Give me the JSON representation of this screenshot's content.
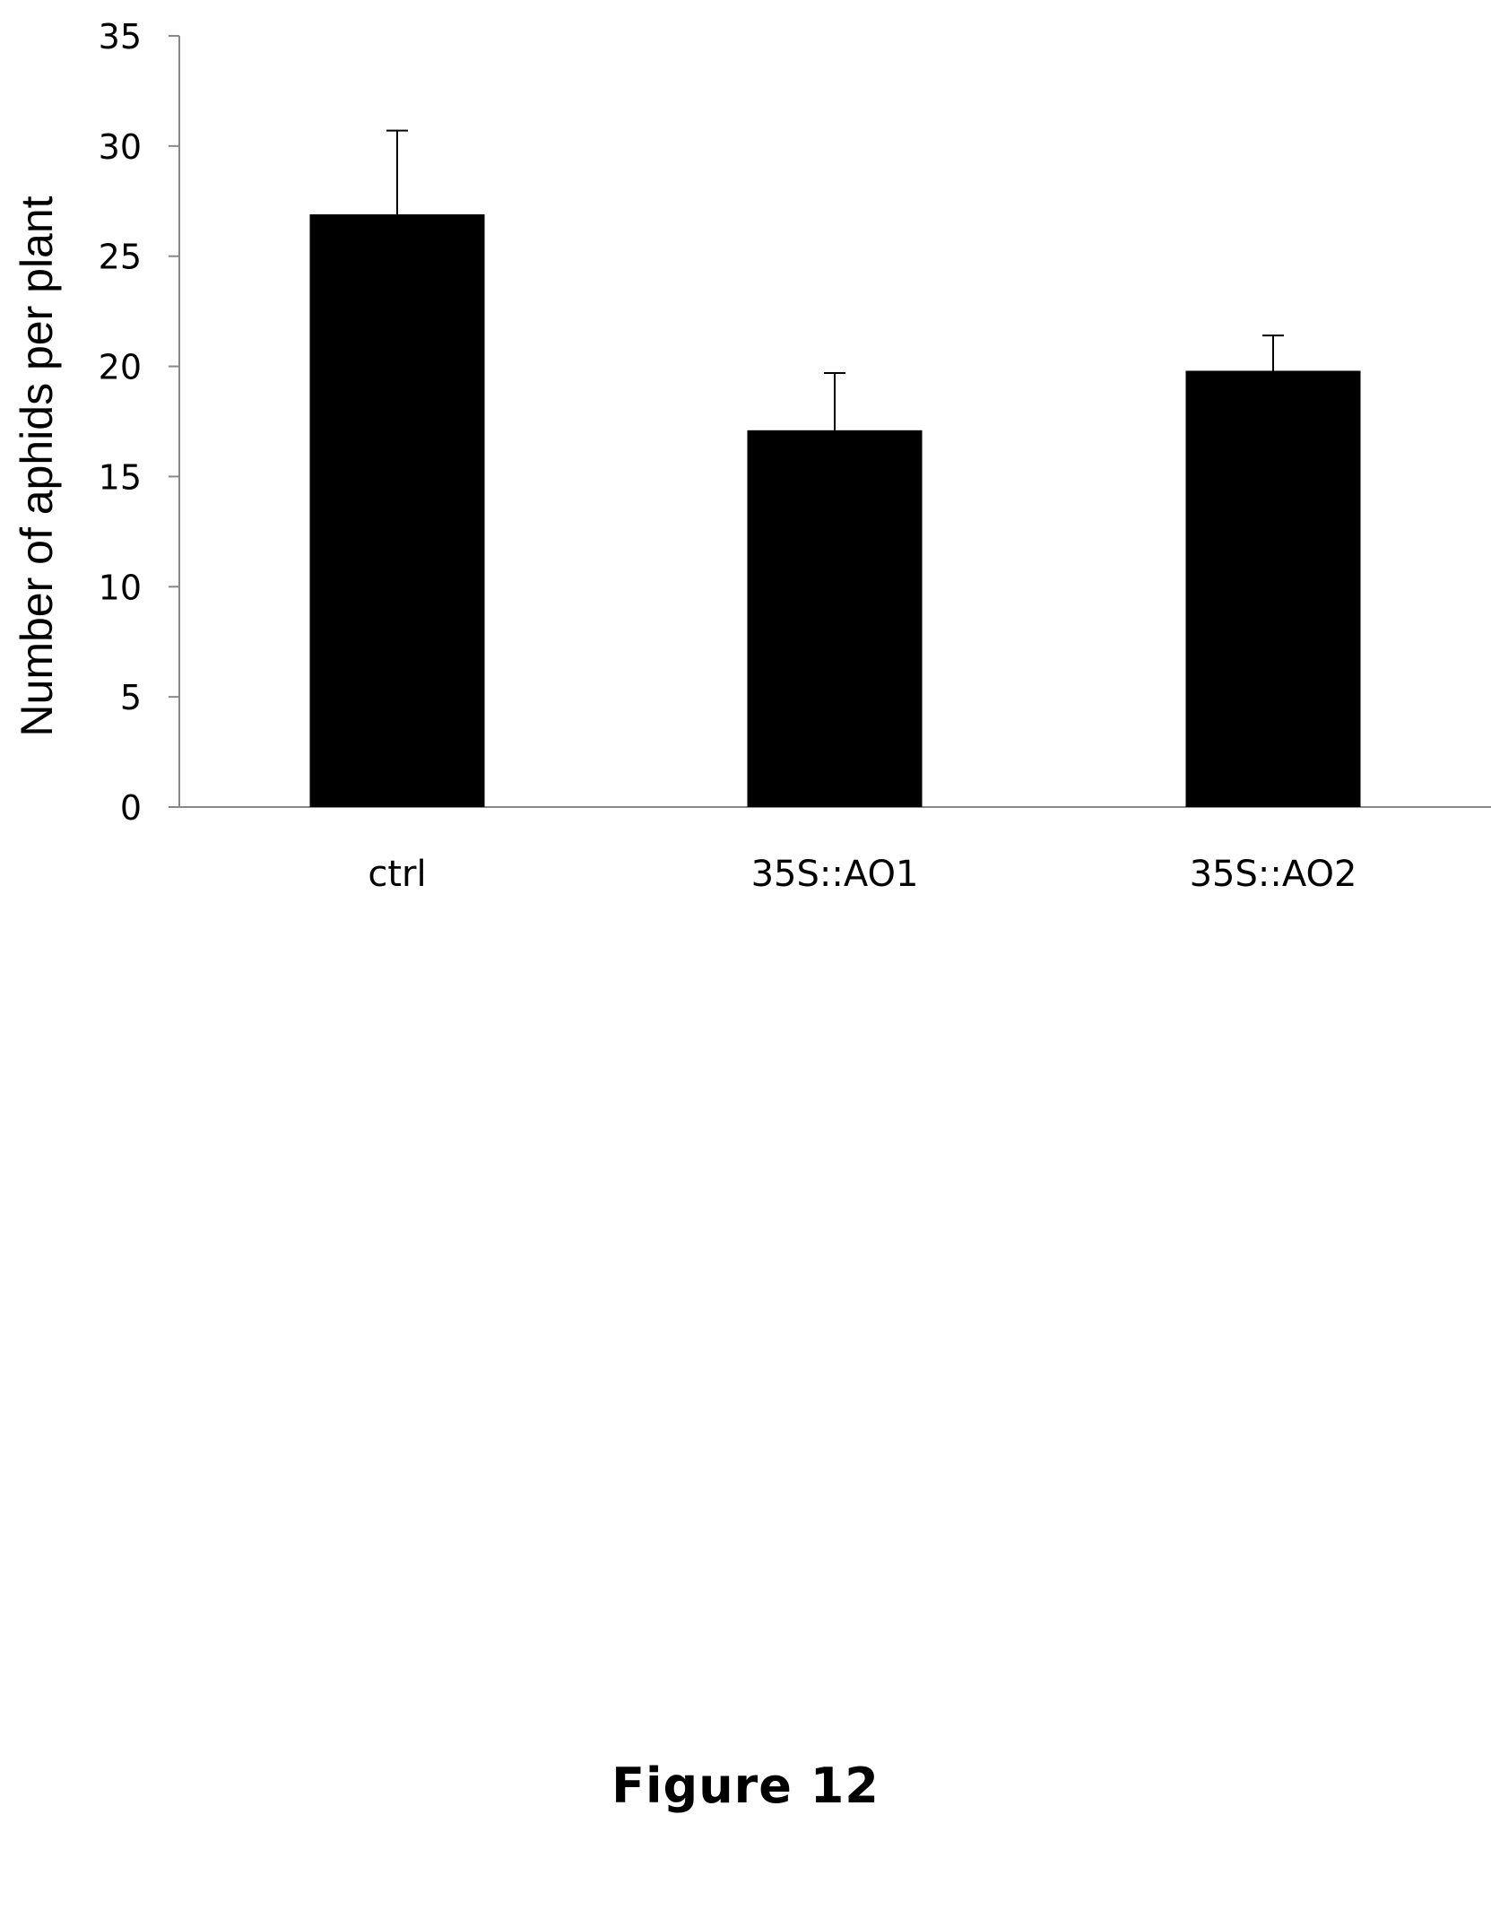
{
  "chart_data": {
    "type": "bar",
    "title": "",
    "xlabel": "",
    "ylabel": "Number of aphids per plant",
    "ylim": [
      0,
      35
    ],
    "yticks": [
      0,
      5,
      10,
      15,
      20,
      25,
      30,
      35
    ],
    "categories": [
      "ctrl",
      "35S::AO1",
      "35S::AO2"
    ],
    "values": [
      26.9,
      17.1,
      19.8
    ],
    "error_bars": [
      3.8,
      2.6,
      1.6
    ],
    "bar_color": "#000000",
    "grid": false,
    "legend": "none"
  },
  "caption": "Figure 12"
}
